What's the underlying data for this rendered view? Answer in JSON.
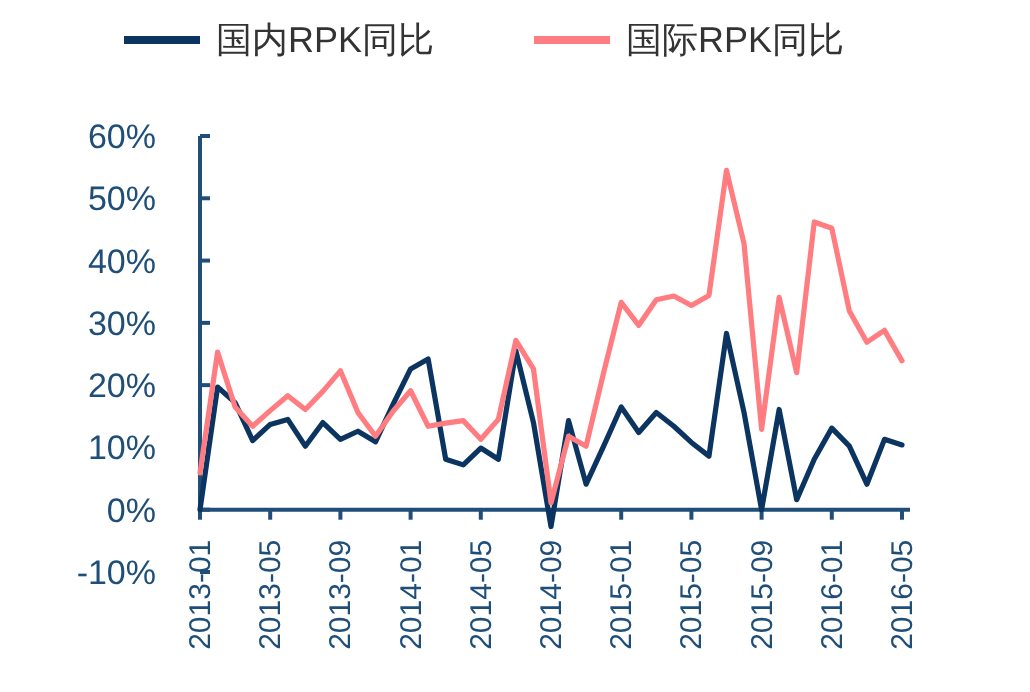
{
  "chart_data": {
    "type": "line",
    "categories": [
      "2013-01",
      null,
      null,
      null,
      "2013-05",
      null,
      null,
      null,
      "2013-09",
      null,
      null,
      null,
      "2014-01",
      null,
      null,
      null,
      "2014-05",
      null,
      null,
      null,
      "2014-09",
      null,
      null,
      null,
      "2015-01",
      null,
      null,
      null,
      "2015-05",
      null,
      null,
      null,
      "2015-09",
      null,
      null,
      null,
      "2016-01",
      null,
      null,
      null,
      "2016-05"
    ],
    "series": [
      {
        "name": "国内RPK同比",
        "color": "#0b3560",
        "values": [
          0,
          19.7,
          17.2,
          11.1,
          13.7,
          14.5,
          10.2,
          14,
          11.3,
          12.6,
          10.9,
          16.9,
          22.6,
          24.2,
          8.1,
          7.2,
          9.9,
          8.1,
          25.5,
          14,
          -2.7,
          14.3,
          4.1,
          10.2,
          16.5,
          12.4,
          15.6,
          13.4,
          10.8,
          8.6,
          28.3,
          15.6,
          0,
          16.1,
          1.6,
          8.1,
          13.1,
          10.2,
          4.1,
          11.3,
          10.4
        ]
      },
      {
        "name": "国际RPK同比",
        "color": "#ff7c80",
        "values": [
          5.9,
          25.3,
          16.5,
          13.4,
          15.9,
          18.3,
          16.1,
          19,
          22.3,
          15.6,
          11.8,
          15.8,
          19.1,
          13.4,
          13.9,
          14.3,
          11.3,
          14.5,
          27.2,
          22.6,
          1.1,
          11.8,
          10.2,
          22,
          33.3,
          29.6,
          33.7,
          34.3,
          32.8,
          34.4,
          54.5,
          42.7,
          12.9,
          34.1,
          22,
          46.2,
          45.2,
          31.9,
          26.9,
          28.8,
          23.9
        ]
      }
    ],
    "ylim": [
      -10,
      60
    ],
    "yticks": [
      {
        "value": -10,
        "label": "-10%"
      },
      {
        "value": 0,
        "label": "0%"
      },
      {
        "value": 10,
        "label": "10%"
      },
      {
        "value": 20,
        "label": "20%"
      },
      {
        "value": 30,
        "label": "30%"
      },
      {
        "value": 40,
        "label": "40%"
      },
      {
        "value": 50,
        "label": "50%"
      },
      {
        "value": 60,
        "label": "60%"
      }
    ],
    "legend": "top"
  }
}
